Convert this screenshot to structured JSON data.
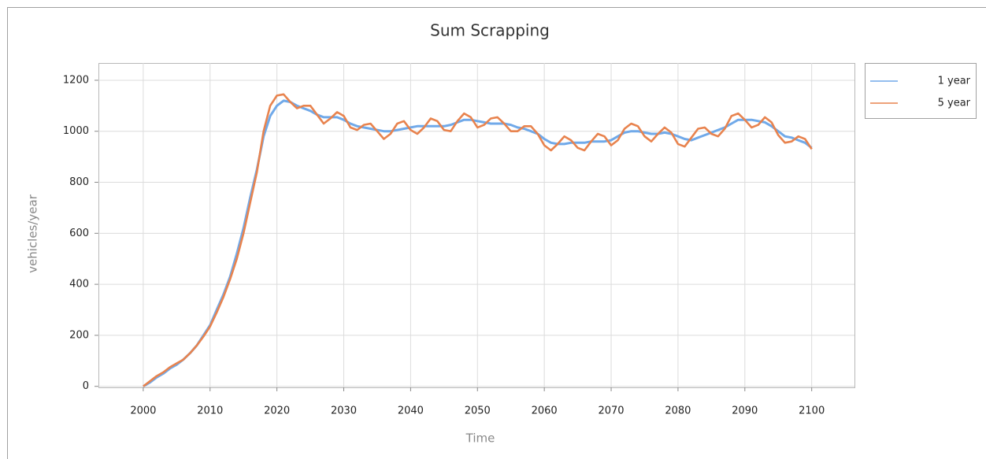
{
  "chart_data": {
    "type": "line",
    "title": "Sum Scrapping",
    "x_label": "Time",
    "y_label": "vehicles/year",
    "x": [
      2000,
      2001,
      2002,
      2003,
      2004,
      2005,
      2006,
      2007,
      2008,
      2009,
      2010,
      2011,
      2012,
      2013,
      2014,
      2015,
      2016,
      2017,
      2018,
      2019,
      2020,
      2021,
      2022,
      2023,
      2024,
      2025,
      2026,
      2027,
      2028,
      2029,
      2030,
      2031,
      2032,
      2033,
      2034,
      2035,
      2036,
      2037,
      2038,
      2039,
      2040,
      2041,
      2042,
      2043,
      2044,
      2045,
      2046,
      2047,
      2048,
      2049,
      2050,
      2051,
      2052,
      2053,
      2054,
      2055,
      2056,
      2057,
      2058,
      2059,
      2060,
      2061,
      2062,
      2063,
      2064,
      2065,
      2066,
      2067,
      2068,
      2069,
      2070,
      2071,
      2072,
      2073,
      2074,
      2075,
      2076,
      2077,
      2078,
      2079,
      2080,
      2081,
      2082,
      2083,
      2084,
      2085,
      2086,
      2087,
      2088,
      2089,
      2090,
      2091,
      2092,
      2093,
      2094,
      2095,
      2096,
      2097,
      2098,
      2099,
      2100
    ],
    "series": [
      {
        "name": "1 year",
        "color": "#70a9e9",
        "values": [
          0,
          15,
          35,
          50,
          70,
          85,
          105,
          130,
          160,
          200,
          240,
          300,
          360,
          430,
          520,
          620,
          740,
          850,
          980,
          1060,
          1100,
          1120,
          1115,
          1100,
          1090,
          1080,
          1065,
          1055,
          1055,
          1055,
          1045,
          1030,
          1020,
          1015,
          1010,
          1005,
          1000,
          1000,
          1005,
          1010,
          1015,
          1020,
          1020,
          1020,
          1020,
          1020,
          1025,
          1035,
          1045,
          1045,
          1040,
          1035,
          1030,
          1030,
          1030,
          1025,
          1015,
          1010,
          1000,
          990,
          970,
          955,
          950,
          950,
          955,
          955,
          955,
          960,
          960,
          960,
          965,
          980,
          995,
          1000,
          1000,
          995,
          990,
          990,
          995,
          990,
          980,
          970,
          965,
          975,
          985,
          995,
          1005,
          1015,
          1030,
          1045,
          1045,
          1045,
          1040,
          1035,
          1020,
          1000,
          980,
          975,
          965,
          955,
          935
        ]
      },
      {
        "name": "5 year",
        "color": "#e8834e",
        "values": [
          0,
          20,
          40,
          55,
          75,
          90,
          105,
          130,
          160,
          195,
          235,
          290,
          350,
          420,
          500,
          600,
          720,
          840,
          1000,
          1100,
          1140,
          1145,
          1115,
          1090,
          1100,
          1100,
          1065,
          1030,
          1050,
          1075,
          1060,
          1015,
          1005,
          1025,
          1030,
          1000,
          970,
          990,
          1030,
          1040,
          1005,
          990,
          1015,
          1050,
          1040,
          1005,
          1000,
          1040,
          1070,
          1055,
          1015,
          1025,
          1050,
          1055,
          1030,
          1000,
          1000,
          1020,
          1020,
          990,
          945,
          925,
          950,
          980,
          965,
          935,
          925,
          960,
          990,
          980,
          945,
          965,
          1010,
          1030,
          1020,
          980,
          960,
          990,
          1015,
          995,
          950,
          940,
          975,
          1010,
          1015,
          990,
          980,
          1010,
          1060,
          1070,
          1045,
          1015,
          1025,
          1055,
          1035,
          985,
          955,
          960,
          980,
          970,
          930
        ]
      }
    ],
    "xlim": [
      1993.3,
      2106.4
    ],
    "ylim": [
      -4,
      1206
    ],
    "xticks": [
      2000,
      2010,
      2020,
      2030,
      2040,
      2050,
      2060,
      2070,
      2080,
      2090,
      2100
    ],
    "yticks": [
      0,
      200,
      400,
      600,
      800,
      1000,
      1200
    ],
    "grid": true,
    "legend": "right"
  }
}
